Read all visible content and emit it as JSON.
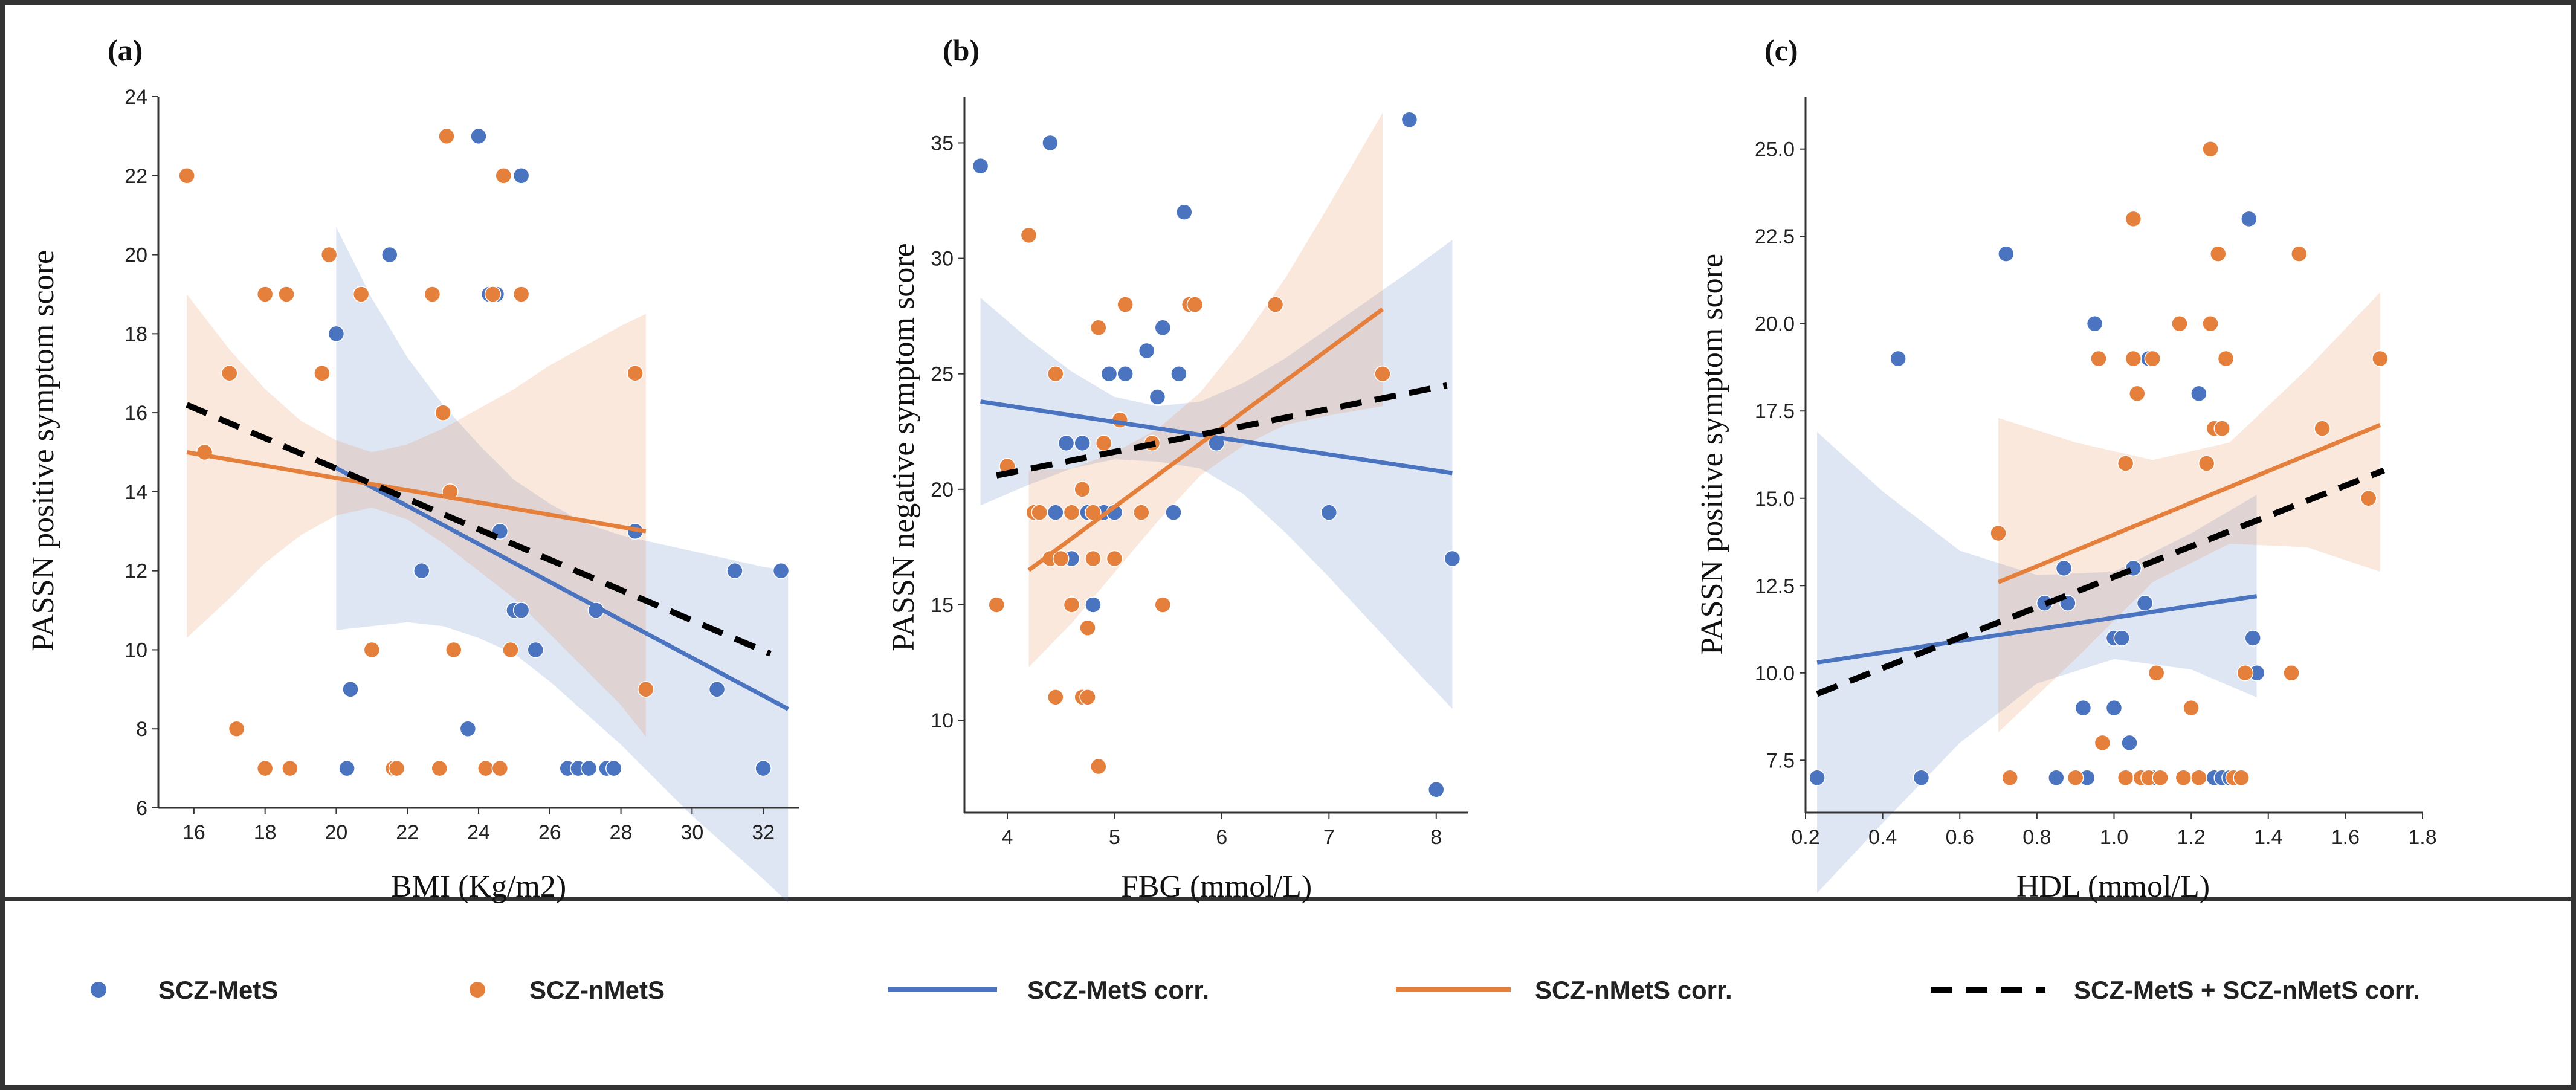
{
  "colors": {
    "metS": "#4a73c0",
    "nmetS": "#e5803c",
    "combined": "#000000",
    "frame": "#333333"
  },
  "legend": [
    {
      "key": "metS_points",
      "label": "SCZ-MetS",
      "kind": "dot"
    },
    {
      "key": "nmetS_points",
      "label": "SCZ-nMetS",
      "kind": "dot"
    },
    {
      "key": "metS_line",
      "label": "SCZ-MetS corr.",
      "kind": "line"
    },
    {
      "key": "nmetS_line",
      "label": "SCZ-nMetS corr.",
      "kind": "line"
    },
    {
      "key": "combined_line",
      "label": "SCZ-MetS + SCZ-nMetS corr.",
      "kind": "dashed"
    }
  ],
  "chart_data": [
    {
      "type": "scatter",
      "panel": "(a)",
      "xlabel": "BMI (Kg/m2)",
      "ylabel": "PASSN positive symptom score",
      "xlim": [
        15,
        33
      ],
      "ylim": [
        6,
        24
      ],
      "xticks": [
        16,
        18,
        20,
        22,
        24,
        26,
        28,
        30,
        32
      ],
      "yticks": [
        6,
        8,
        10,
        12,
        14,
        16,
        18,
        20,
        22,
        24
      ],
      "tick_decimals": 0,
      "series": [
        {
          "name": "SCZ-MetS",
          "points": [
            [
              20,
              18
            ],
            [
              20.3,
              7
            ],
            [
              20.4,
              9
            ],
            [
              21.5,
              20
            ],
            [
              21.6,
              7
            ],
            [
              22.4,
              12
            ],
            [
              23.7,
              8
            ],
            [
              24,
              23
            ],
            [
              24.2,
              7
            ],
            [
              24.3,
              19
            ],
            [
              24.5,
              19
            ],
            [
              24.6,
              13
            ],
            [
              25,
              11
            ],
            [
              25.2,
              11
            ],
            [
              25.2,
              22
            ],
            [
              25.6,
              10
            ],
            [
              26.5,
              7
            ],
            [
              26.8,
              7
            ],
            [
              27.1,
              7
            ],
            [
              27.3,
              11
            ],
            [
              27.6,
              7
            ],
            [
              27.8,
              7
            ],
            [
              28.4,
              13
            ],
            [
              30.7,
              9
            ],
            [
              31.2,
              12
            ],
            [
              32,
              7
            ],
            [
              32.5,
              12
            ]
          ],
          "fit": {
            "x": [
              20,
              32.7
            ],
            "y": [
              14.6,
              8.5
            ]
          },
          "ci": {
            "x": [
              20,
              21,
              22,
              23,
              24,
              25,
              26,
              27,
              28,
              29,
              30,
              31,
              32,
              32.7
            ],
            "upper": [
              20.7,
              18.9,
              17.4,
              16.2,
              15.2,
              14.3,
              13.7,
              13.2,
              12.9,
              12.7,
              12.5,
              12.3,
              12.1,
              12.0
            ],
            "lower": [
              10.5,
              10.6,
              10.7,
              10.6,
              10.3,
              9.9,
              9.2,
              8.4,
              7.6,
              6.7,
              5.8,
              5.0,
              4.2,
              3.6
            ]
          }
        },
        {
          "name": "SCZ-nMetS",
          "points": [
            [
              15.8,
              22
            ],
            [
              16.3,
              15
            ],
            [
              17,
              17
            ],
            [
              17.2,
              8
            ],
            [
              18,
              19
            ],
            [
              18,
              7
            ],
            [
              18.6,
              19
            ],
            [
              18.7,
              7
            ],
            [
              19.6,
              17
            ],
            [
              19.8,
              20
            ],
            [
              20.7,
              19
            ],
            [
              21,
              10
            ],
            [
              21.6,
              7
            ],
            [
              21.7,
              7
            ],
            [
              22.7,
              19
            ],
            [
              22.9,
              7
            ],
            [
              23,
              16
            ],
            [
              23.1,
              23
            ],
            [
              23.2,
              14
            ],
            [
              23.3,
              10
            ],
            [
              24.2,
              7
            ],
            [
              24.4,
              19
            ],
            [
              24.6,
              7
            ],
            [
              24.7,
              22
            ],
            [
              24.9,
              10
            ],
            [
              25.2,
              19
            ],
            [
              28.4,
              17
            ],
            [
              28.7,
              9
            ]
          ],
          "fit": {
            "x": [
              15.8,
              28.7
            ],
            "y": [
              15,
              13
            ]
          },
          "ci": {
            "x": [
              15.8,
              17,
              18,
              19,
              20,
              21,
              22,
              23,
              24,
              25,
              26,
              27,
              28,
              28.7
            ],
            "upper": [
              19.0,
              17.6,
              16.6,
              15.8,
              15.3,
              15.0,
              15.2,
              15.6,
              16.1,
              16.6,
              17.2,
              17.7,
              18.2,
              18.5
            ],
            "lower": [
              10.3,
              11.3,
              12.2,
              12.9,
              13.4,
              13.6,
              13.3,
              12.7,
              12.0,
              11.3,
              10.4,
              9.5,
              8.6,
              7.8
            ]
          }
        }
      ],
      "combined_fit": {
        "x": [
          15.8,
          32.2
        ],
        "y": [
          16.2,
          9.9
        ]
      }
    },
    {
      "type": "scatter",
      "panel": "(b)",
      "xlabel": "FBG (mmol/L)",
      "ylabel": "PASSN negative symptom score",
      "xlim": [
        3.6,
        8.3
      ],
      "ylim": [
        6,
        37
      ],
      "xticks": [
        4,
        5,
        6,
        7,
        8
      ],
      "yticks": [
        10,
        15,
        20,
        25,
        30,
        35
      ],
      "tick_decimals": 0,
      "series": [
        {
          "name": "SCZ-MetS",
          "points": [
            [
              3.75,
              34
            ],
            [
              4.3,
              19
            ],
            [
              4.4,
              35
            ],
            [
              4.45,
              19
            ],
            [
              4.55,
              22
            ],
            [
              4.6,
              17
            ],
            [
              4.7,
              22
            ],
            [
              4.75,
              19
            ],
            [
              4.8,
              15
            ],
            [
              4.9,
              19
            ],
            [
              4.95,
              25
            ],
            [
              5,
              19
            ],
            [
              5.1,
              25
            ],
            [
              5.3,
              26
            ],
            [
              5.4,
              24
            ],
            [
              5.45,
              27
            ],
            [
              5.6,
              25
            ],
            [
              5.65,
              32
            ],
            [
              5.55,
              19
            ],
            [
              5.95,
              22
            ],
            [
              7,
              19
            ],
            [
              7.75,
              36
            ],
            [
              8,
              7
            ],
            [
              8.15,
              17
            ]
          ],
          "fit": {
            "x": [
              3.75,
              8.15
            ],
            "y": [
              23.8,
              20.7
            ]
          },
          "ci": {
            "x": [
              3.75,
              4.2,
              4.6,
              5.0,
              5.4,
              5.8,
              6.2,
              6.6,
              7.0,
              7.4,
              7.8,
              8.15
            ],
            "upper": [
              28.3,
              26.5,
              25.1,
              24.0,
              23.6,
              23.8,
              24.6,
              25.7,
              27.0,
              28.3,
              29.6,
              30.8
            ],
            "lower": [
              19.3,
              20.2,
              20.9,
              21.3,
              21.2,
              20.9,
              19.8,
              18.1,
              16.2,
              14.2,
              12.2,
              10.5
            ]
          }
        },
        {
          "name": "SCZ-nMetS",
          "points": [
            [
              3.9,
              15
            ],
            [
              4,
              21
            ],
            [
              4.2,
              31
            ],
            [
              4.25,
              19
            ],
            [
              4.3,
              19
            ],
            [
              4.4,
              17
            ],
            [
              4.45,
              11
            ],
            [
              4.45,
              25
            ],
            [
              4.5,
              17
            ],
            [
              4.6,
              19
            ],
            [
              4.6,
              15
            ],
            [
              4.7,
              20
            ],
            [
              4.7,
              11
            ],
            [
              4.75,
              14
            ],
            [
              4.75,
              11
            ],
            [
              4.8,
              17
            ],
            [
              4.8,
              19
            ],
            [
              4.85,
              8
            ],
            [
              4.85,
              27
            ],
            [
              4.9,
              22
            ],
            [
              5,
              17
            ],
            [
              5.05,
              23
            ],
            [
              5.1,
              28
            ],
            [
              5.25,
              19
            ],
            [
              5.35,
              22
            ],
            [
              5.45,
              15
            ],
            [
              5.7,
              28
            ],
            [
              5.75,
              28
            ],
            [
              6.5,
              28
            ],
            [
              7.5,
              25
            ]
          ],
          "fit": {
            "x": [
              4.2,
              7.5
            ],
            "y": [
              16.5,
              27.8
            ]
          },
          "ci": {
            "x": [
              4.2,
              4.6,
              5.0,
              5.4,
              5.8,
              6.2,
              6.6,
              7.0,
              7.5
            ],
            "upper": [
              20.8,
              20.9,
              21.6,
              22.6,
              24.2,
              26.5,
              29.2,
              32.3,
              36.3
            ],
            "lower": [
              12.3,
              14.2,
              16.4,
              18.6,
              20.6,
              21.9,
              22.8,
              23.2,
              23.6
            ]
          }
        }
      ],
      "combined_fit": {
        "x": [
          3.9,
          8.1
        ],
        "y": [
          20.6,
          24.5
        ]
      }
    },
    {
      "type": "scatter",
      "panel": "(c)",
      "xlabel": "HDL (mmol/L)",
      "ylabel": "PASSN positive symptom score",
      "xlim": [
        0.2,
        1.8
      ],
      "ylim": [
        6,
        26.5
      ],
      "xticks": [
        0.2,
        0.4,
        0.6,
        0.8,
        1.0,
        1.2,
        1.4,
        1.6,
        1.8
      ],
      "yticks": [
        7.5,
        10.0,
        12.5,
        15.0,
        17.5,
        20.0,
        22.5,
        25.0
      ],
      "tick_decimals": 1,
      "series": [
        {
          "name": "SCZ-MetS",
          "points": [
            [
              0.23,
              7
            ],
            [
              0.44,
              19
            ],
            [
              0.5,
              7
            ],
            [
              0.72,
              22
            ],
            [
              0.82,
              12
            ],
            [
              0.85,
              7
            ],
            [
              0.87,
              13
            ],
            [
              0.88,
              12
            ],
            [
              0.92,
              9
            ],
            [
              0.93,
              7
            ],
            [
              0.95,
              20
            ],
            [
              1.0,
              11
            ],
            [
              1.0,
              9
            ],
            [
              1.02,
              11
            ],
            [
              1.04,
              8
            ],
            [
              1.05,
              13
            ],
            [
              1.07,
              7
            ],
            [
              1.08,
              12
            ],
            [
              1.09,
              19
            ],
            [
              1.1,
              7
            ],
            [
              1.12,
              7
            ],
            [
              1.22,
              18
            ],
            [
              1.26,
              7
            ],
            [
              1.28,
              7
            ],
            [
              1.3,
              7
            ],
            [
              1.35,
              23
            ],
            [
              1.36,
              11
            ],
            [
              1.37,
              10
            ]
          ],
          "fit": {
            "x": [
              0.23,
              1.37
            ],
            "y": [
              10.3,
              12.2
            ]
          },
          "ci": {
            "x": [
              0.23,
              0.4,
              0.6,
              0.8,
              1.0,
              1.2,
              1.37
            ],
            "upper": [
              16.9,
              15.2,
              13.5,
              12.8,
              12.9,
              14.0,
              15.1
            ],
            "lower": [
              3.7,
              5.7,
              8.0,
              9.7,
              10.4,
              10.1,
              9.3
            ]
          }
        },
        {
          "name": "SCZ-nMetS",
          "points": [
            [
              0.7,
              14
            ],
            [
              0.73,
              7
            ],
            [
              0.9,
              7
            ],
            [
              0.96,
              19
            ],
            [
              0.97,
              8
            ],
            [
              1.03,
              16
            ],
            [
              1.03,
              7
            ],
            [
              1.05,
              19
            ],
            [
              1.05,
              23
            ],
            [
              1.06,
              18
            ],
            [
              1.07,
              7
            ],
            [
              1.09,
              7
            ],
            [
              1.1,
              19
            ],
            [
              1.11,
              10
            ],
            [
              1.12,
              7
            ],
            [
              1.17,
              20
            ],
            [
              1.18,
              7
            ],
            [
              1.2,
              9
            ],
            [
              1.22,
              7
            ],
            [
              1.24,
              16
            ],
            [
              1.25,
              20
            ],
            [
              1.25,
              25
            ],
            [
              1.26,
              17
            ],
            [
              1.27,
              22
            ],
            [
              1.28,
              17
            ],
            [
              1.29,
              19
            ],
            [
              1.31,
              7
            ],
            [
              1.33,
              7
            ],
            [
              1.34,
              10
            ],
            [
              1.46,
              10
            ],
            [
              1.48,
              22
            ],
            [
              1.54,
              17
            ],
            [
              1.66,
              15
            ],
            [
              1.69,
              19
            ]
          ],
          "fit": {
            "x": [
              0.7,
              1.69
            ],
            "y": [
              12.6,
              17.1
            ]
          },
          "ci": {
            "x": [
              0.7,
              0.9,
              1.1,
              1.3,
              1.5,
              1.69
            ],
            "upper": [
              17.3,
              16.6,
              16.1,
              16.6,
              18.7,
              20.9
            ],
            "lower": [
              8.3,
              10.4,
              12.6,
              13.7,
              13.6,
              12.9
            ]
          }
        }
      ],
      "combined_fit": {
        "x": [
          0.23,
          1.7
        ],
        "y": [
          9.4,
          15.8
        ]
      }
    }
  ]
}
